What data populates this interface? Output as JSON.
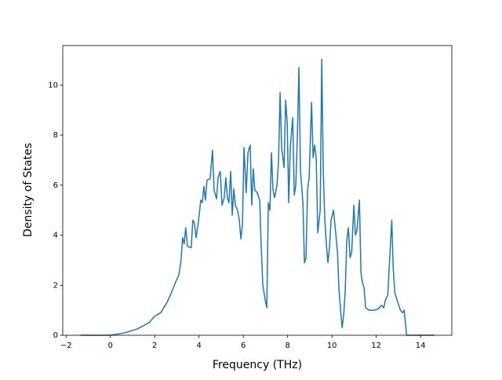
{
  "chart_data": {
    "type": "line",
    "xlabel": "Frequency (THz)",
    "ylabel": "Density of States",
    "color": "#1f77b4",
    "x": [
      -1.35,
      0,
      0.67,
      1.21,
      1.74,
      1.99,
      2.27,
      2.55,
      2.8,
      2.98,
      3.09,
      3.19,
      3.26,
      3.33,
      3.4,
      3.48,
      3.65,
      3.72,
      3.79,
      3.87,
      3.97,
      4.08,
      4.15,
      4.22,
      4.29,
      4.36,
      4.5,
      4.61,
      4.68,
      4.79,
      4.86,
      4.96,
      5.04,
      5.14,
      5.21,
      5.28,
      5.35,
      5.43,
      5.5,
      5.57,
      5.64,
      5.74,
      5.82,
      5.89,
      5.96,
      6.03,
      6.13,
      6.21,
      6.31,
      6.38,
      6.45,
      6.52,
      6.63,
      6.74,
      6.81,
      6.88,
      6.99,
      7.06,
      7.13,
      7.2,
      7.27,
      7.34,
      7.41,
      7.52,
      7.59,
      7.66,
      7.73,
      7.84,
      7.91,
      7.98,
      8.05,
      8.12,
      8.23,
      8.3,
      8.37,
      8.44,
      8.51,
      8.58,
      8.69,
      8.76,
      8.83,
      8.9,
      8.97,
      9.08,
      9.15,
      9.22,
      9.29,
      9.36,
      9.47,
      9.54,
      9.61,
      9.68,
      9.75,
      9.82,
      9.89,
      9.96,
      10.07,
      10.18,
      10.25,
      10.32,
      10.39,
      10.46,
      10.53,
      10.6,
      10.67,
      10.74,
      10.82,
      10.89,
      10.99,
      11.06,
      11.13,
      11.24,
      11.31,
      11.38,
      11.45,
      11.52,
      11.67,
      11.88,
      12.09,
      12.23,
      12.34,
      12.41,
      12.52,
      12.59,
      12.7,
      12.77,
      12.84,
      12.98,
      13.09,
      13.19,
      13.26,
      13.37,
      14.61
    ],
    "values": [
      0,
      0,
      0.1,
      0.25,
      0.5,
      0.75,
      0.9,
      1.3,
      1.8,
      2.2,
      2.4,
      3.0,
      3.9,
      3.65,
      4.3,
      3.55,
      3.5,
      4.6,
      4.5,
      3.9,
      4.5,
      5.4,
      5.3,
      5.95,
      5.4,
      6.2,
      6.25,
      7.4,
      5.8,
      5.45,
      6.3,
      6.55,
      5.2,
      5.5,
      6.3,
      5.5,
      5.3,
      6.55,
      4.8,
      5.85,
      5.2,
      5.0,
      4.6,
      3.85,
      4.4,
      7.5,
      5.7,
      7.3,
      7.6,
      5.2,
      6.65,
      5.8,
      5.7,
      5.4,
      3.5,
      2.0,
      1.4,
      1.1,
      5.3,
      5.0,
      7.3,
      5.8,
      5.5,
      6.0,
      7.0,
      9.7,
      7.5,
      6.7,
      9.4,
      8.5,
      5.3,
      7.5,
      8.7,
      5.6,
      6.0,
      8.0,
      10.7,
      6.6,
      5.3,
      2.9,
      3.1,
      5.8,
      6.3,
      9.3,
      7.1,
      7.6,
      7.1,
      4.1,
      5.0,
      11.03,
      6.5,
      4.6,
      3.6,
      2.9,
      3.5,
      4.6,
      5.0,
      4.0,
      3.3,
      1.8,
      1.0,
      0.3,
      0.8,
      1.8,
      3.8,
      4.3,
      3.1,
      3.3,
      5.2,
      4.0,
      4.2,
      5.4,
      2.5,
      2.1,
      1.9,
      1.1,
      1.0,
      1.0,
      1.05,
      1.2,
      1.1,
      1.4,
      1.6,
      2.8,
      4.6,
      2.6,
      1.7,
      1.3,
      1.0,
      0.9,
      1.0,
      0,
      0
    ],
    "xlim": [
      -2.15,
      15.41
    ],
    "ylim": [
      0,
      11.58
    ],
    "xticks": [
      {
        "value": -2,
        "label": "−2"
      },
      0,
      2,
      4,
      6,
      8,
      10,
      12,
      14
    ],
    "yticks": [
      0,
      2,
      4,
      6,
      8,
      10
    ]
  }
}
